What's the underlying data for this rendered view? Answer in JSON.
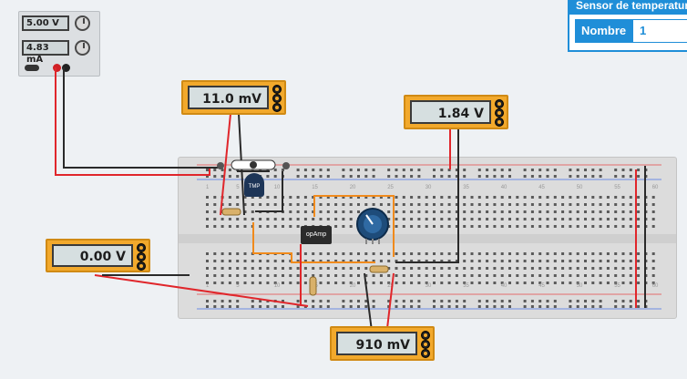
{
  "power_supply": {
    "voltage": "5.00 V",
    "current": "4.83 mA"
  },
  "meters": {
    "top_center": "11.0 mV",
    "top_right": "1.84 V",
    "left": "0.00 V",
    "bottom": "910 mV"
  },
  "chips": {
    "opamp_label": "opAmp",
    "sensor_label": "TMP"
  },
  "properties_panel": {
    "title": "Sensor de temperatura",
    "name_label": "Nombre",
    "name_value": "1"
  },
  "board_column_numbers": [
    "1",
    "5",
    "10",
    "15",
    "20",
    "25",
    "30",
    "35",
    "40",
    "45",
    "50",
    "55",
    "60"
  ],
  "colors": {
    "meter_body": "#f2a92c",
    "wire_red": "#e0262b",
    "wire_black": "#2a2a2a",
    "wire_orange": "#f08a1c",
    "panel_accent": "#1f8ed8"
  }
}
